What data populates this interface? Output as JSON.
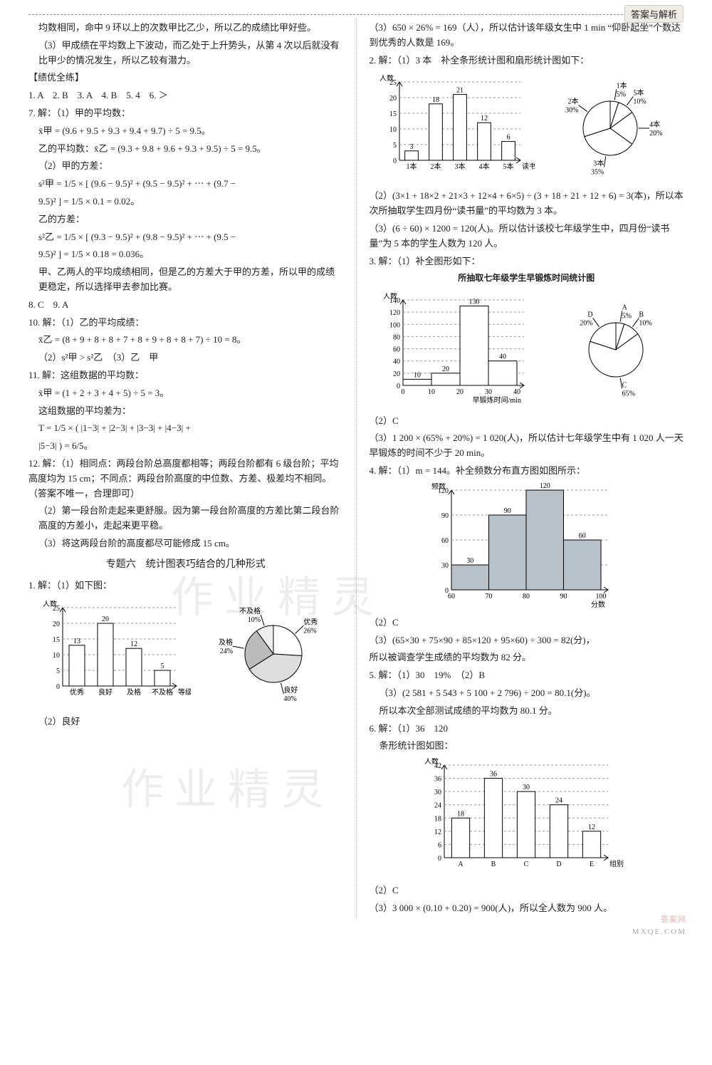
{
  "header": {
    "tag": "答案与解析"
  },
  "watermarks": {
    "w1": "作 业 精 灵",
    "w2": "作 业 精 灵"
  },
  "footer": {
    "line1": "答案网",
    "line2": "MXQE.COM"
  },
  "left": {
    "preamble": [
      "均数相同，命中 9 环以上的次数甲比乙少，所以乙的成绩比甲好些。",
      "（3）甲成绩在平均数上下波动，而乙处于上升势头，从第 4 次以后就没有比甲少的情况发生，所以乙较有潜力。"
    ],
    "bracket": "【绩优全练】",
    "answers_inline": "1. A　2. B　3. A　4. B　5. 4　6. ＞",
    "q7": {
      "head": "7. 解：（1）甲的平均数：",
      "l1": "x̄甲 = (9.6 + 9.5 + 9.3 + 9.4 + 9.7) ÷ 5 = 9.5。",
      "l2": "乙的平均数：x̄乙 = (9.3 + 9.8 + 9.6 + 9.3 + 9.5) ÷ 5 = 9.5。",
      "p2head": "（2）甲的方差：",
      "l3a": "s²甲 = 1/5 × [ (9.6 − 9.5)² + (9.5 − 9.5)² + ⋯ + (9.7 −",
      "l3b": "9.5)² ] = 1/5 × 0.1 = 0.02。",
      "p2b": "乙的方差：",
      "l4a": "s²乙 = 1/5 × [ (9.3 − 9.5)² + (9.8 − 9.5)² + ⋯ + (9.5 −",
      "l4b": "9.5)² ] = 1/5 × 0.18 = 0.036。",
      "concl": "甲、乙两人的平均成绩相同，但是乙的方差大于甲的方差，所以甲的成绩更稳定，所以选择甲去参加比赛。"
    },
    "q89": "8. C　9. A",
    "q10": {
      "head": "10. 解：（1）乙的平均成绩：",
      "l1": "x̄乙 = (8 + 9 + 8 + 8 + 7 + 8 + 9 + 8 + 8 + 7) ÷ 10 = 8。",
      "l2": "（2）s²甲 > s²乙　（3）乙　甲"
    },
    "q11": {
      "head": "11. 解：这组数据的平均数：",
      "l1": "x̄甲 = (1 + 2 + 3 + 4 + 5) ÷ 5 = 3。",
      "l2": "这组数据的平均差为：",
      "l3": "T = 1/5 × ( |1−3| + |2−3| + |3−3| + |4−3| +",
      "l4": "|5−3| ) = 6/5。"
    },
    "q12": {
      "l1": "12. 解：（1）相同点：两段台阶总高度都相等；两段台阶都有 6 级台阶；平均高度均为 15 cm；不同点：两段台阶高度的中位数、方差、极差均不相同。（答案不唯一，合理即可）",
      "l2": "（2）第一段台阶走起来更舒服。因为第一段台阶高度的方差比第二段台阶高度的方差小，走起来更平稳。",
      "l3": "（3）将这两段台阶的高度都尽可能修成 15 cm。"
    },
    "topic_title": "专题六　统计图表巧结合的几种形式",
    "q1": {
      "head": "1. 解：（1）如下图：",
      "bar": {
        "ylabel": "人数",
        "xlabel": "等级",
        "ticks": [
          0,
          5,
          10,
          15,
          20,
          25
        ],
        "cats": [
          "优秀",
          "良好",
          "及格",
          "不及格"
        ],
        "vals": [
          13,
          20,
          12,
          5
        ],
        "bar_color": "#ffffff",
        "bar_stroke": "#000"
      },
      "pie": {
        "slices": [
          {
            "label": "优秀",
            "pct": "26%",
            "value": 26,
            "color": "#fff"
          },
          {
            "label": "良好",
            "pct": "40%",
            "value": 40,
            "color": "#ddd"
          },
          {
            "label": "及格",
            "pct": "24%",
            "value": 24,
            "color": "#bbb"
          },
          {
            "label": "不及格",
            "pct": "10%",
            "value": 10,
            "color": "#eee"
          }
        ]
      },
      "l2": "（2）良好"
    }
  },
  "right": {
    "q1c": {
      "l3": "（3）650 × 26% = 169（人），所以估计该年级女生中 1 min “仰卧起坐”个数达到优秀的人数是 169。"
    },
    "q2": {
      "head": "2. 解：（1）3 本　补全条形统计图和扇形统计图如下：",
      "bar": {
        "ylabel": "人数",
        "xlabel": "读书量",
        "ticks": [
          0,
          5,
          10,
          15,
          20,
          25
        ],
        "cats": [
          "1本",
          "2本",
          "3本",
          "4本",
          "5本"
        ],
        "vals": [
          3,
          18,
          21,
          12,
          6
        ]
      },
      "pie": {
        "slices": [
          {
            "label": "1本",
            "pct": "5%",
            "value": 5
          },
          {
            "label": "5本",
            "pct": "10%",
            "value": 10
          },
          {
            "label": "4本",
            "pct": "20%",
            "value": 20
          },
          {
            "label": "3本",
            "pct": "35%",
            "value": 35
          },
          {
            "label": "2本",
            "pct": "30%",
            "value": 30
          }
        ]
      },
      "l2": "（2）(3×1 + 18×2 + 21×3 + 12×4 + 6×5) ÷ (3 + 18 + 21 + 12 + 6) = 3(本)，所以本次所抽取学生四月份“读书量”的平均数为 3 本。",
      "l3": "（3）(6 ÷ 60) × 1200 = 120(人)。所以估计该校七年级学生中，四月份“读书量”为 5 本的学生人数为 120 人。"
    },
    "q3": {
      "head": "3. 解：（1）补全图形如下：",
      "title": "所抽取七年级学生早锻炼时间统计图",
      "bar": {
        "ylabel": "人数",
        "xlabel": "早锻炼时间/min",
        "ticks": [
          0,
          20,
          40,
          60,
          80,
          100,
          120,
          140
        ],
        "edges": [
          0,
          10,
          20,
          30,
          40
        ],
        "vals": [
          10,
          20,
          130,
          40
        ]
      },
      "pie": {
        "slices": [
          {
            "label": "A",
            "pct": "5%",
            "value": 5
          },
          {
            "label": "B",
            "pct": "10%",
            "value": 10
          },
          {
            "label": "C",
            "pct": "65%",
            "value": 65
          },
          {
            "label": "D",
            "pct": "20%",
            "value": 20
          }
        ]
      },
      "l2": "（2）C",
      "l3": "（3）1 200 × (65% + 20%) = 1 020(人)，所以估计七年级学生中有 1 020 人一天早锻炼的时间不少于 20 min。"
    },
    "q4": {
      "head": "4. 解：（1）m = 144。补全频数分布直方图如图所示：",
      "bar": {
        "ylabel": "频数",
        "xlabel": "分数",
        "ticks": [
          0,
          30,
          60,
          90,
          120
        ],
        "edges": [
          60,
          70,
          80,
          90,
          100
        ],
        "vals": [
          30,
          90,
          120,
          60
        ],
        "fill": "#b8c0c8"
      },
      "l2": "（2）C",
      "l3": "（3）(65×30 + 75×90 + 85×120 + 95×60) ÷ 300 = 82(分)，",
      "l4": "所以被调查学生成绩的平均数为 82 分。"
    },
    "q5": {
      "l1": "5. 解：（1）30　19%　（2）B",
      "l2": "（3）(2 581 + 5 543 + 5 100 + 2 796) ÷ 200 = 80.1(分)。",
      "l3": "所以本次全部测试成绩的平均数为 80.1 分。"
    },
    "q6": {
      "head": "6. 解：（1）36　120",
      "sub": "条形统计图如图：",
      "bar": {
        "ylabel": "人数",
        "xlabel": "组别",
        "ticks": [
          0,
          6,
          12,
          18,
          24,
          30,
          36,
          42
        ],
        "cats": [
          "A",
          "B",
          "C",
          "D",
          "E"
        ],
        "vals": [
          18,
          36,
          30,
          24,
          12
        ]
      },
      "l2": "（2）C",
      "l3": "（3）3 000 × (0.10 + 0.20) = 900(人)，所以全人数为 900 人。"
    }
  }
}
